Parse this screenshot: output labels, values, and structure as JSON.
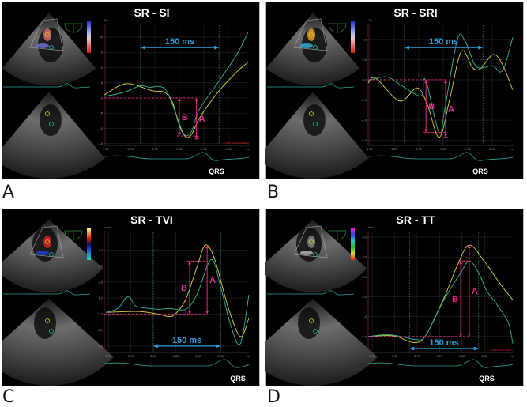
{
  "figure": {
    "panel_labels": [
      "A",
      "B",
      "C",
      "D"
    ]
  },
  "colors": {
    "yellow": "#d9d23c",
    "green": "#2bb79a",
    "magenta": "#e32a8c",
    "interval": "#2a9fe0",
    "ecg": "#27a895",
    "axis_red": "#8a2040",
    "drift": "#d41a1a"
  },
  "panels": [
    {
      "title": "SR - SI",
      "interval_label": "150 ms",
      "qrs_label": "QRS",
      "a_label": "A",
      "b_label": "B",
      "drift_label": "Drift compensation"
    },
    {
      "title": "SR - SRI",
      "interval_label": "150 ms",
      "qrs_label": "QRS",
      "a_label": "A",
      "b_label": "B"
    },
    {
      "title": "SR - TVI",
      "interval_label": "150 ms",
      "qrs_label": "QRS",
      "a_label": "A",
      "b_label": "B"
    },
    {
      "title": "SR - TT",
      "interval_label": "150 ms",
      "qrs_label": "QRS",
      "a_label": "A",
      "b_label": "B",
      "drift_label": "Drift compensation"
    }
  ],
  "chart_data": [
    {
      "type": "line",
      "title": "SR - SI",
      "y_unit": "%",
      "x_unit": "s",
      "xlim": [
        1.197,
        1.492
      ],
      "ylim": [
        -15.6,
        23.9
      ],
      "xticks": [
        1.2,
        1.25,
        1.3,
        1.35,
        1.4,
        1.45
      ],
      "xtick_labels": [
        "1.20",
        "1.25",
        "1.30",
        "1.35",
        "1.40",
        "1.45"
      ],
      "yticks": [
        20,
        15,
        10,
        5,
        0,
        -5,
        -10,
        -15
      ],
      "ytick_labels": [
        "20",
        "15",
        "10",
        "5",
        "0",
        "-5",
        "-10",
        "-15"
      ],
      "series": [
        {
          "name": "yellow",
          "points": [
            [
              1.197,
              1
            ],
            [
              1.242,
              4.7
            ],
            [
              1.294,
              2.4
            ],
            [
              1.318,
              2
            ],
            [
              1.335,
              -1
            ],
            [
              1.35,
              -9
            ],
            [
              1.363,
              -12.8
            ],
            [
              1.375,
              -12
            ],
            [
              1.39,
              -7
            ],
            [
              1.415,
              -1
            ],
            [
              1.44,
              4
            ],
            [
              1.47,
              9
            ],
            [
              1.49,
              11.7
            ]
          ]
        },
        {
          "name": "green",
          "points": [
            [
              1.197,
              0.5
            ],
            [
              1.24,
              2
            ],
            [
              1.27,
              4
            ],
            [
              1.29,
              3.5
            ],
            [
              1.31,
              3.8
            ],
            [
              1.325,
              2
            ],
            [
              1.345,
              -6
            ],
            [
              1.36,
              -12
            ],
            [
              1.375,
              -11
            ],
            [
              1.39,
              -4
            ],
            [
              1.42,
              3
            ],
            [
              1.45,
              10
            ],
            [
              1.47,
              15
            ],
            [
              1.49,
              21.5
            ]
          ]
        }
      ],
      "annotations": {
        "baseline": 0,
        "b": {
          "t": 1.35,
          "value": -12.5
        },
        "a": {
          "t": 1.385,
          "value": -13.5
        },
        "interval": {
          "start": 1.271,
          "end": 1.431,
          "value": 16.6
        }
      }
    },
    {
      "type": "line",
      "title": "SR - SRI",
      "y_unit": "1/s",
      "x_unit": "s",
      "xlim": [
        1.197,
        1.492
      ],
      "ylim": [
        -6.5,
        5.4
      ],
      "xticks": [
        1.2,
        1.25,
        1.3,
        1.35,
        1.4,
        1.45
      ],
      "xtick_labels": [
        "1.20",
        "1.25",
        "1.30",
        "1.35",
        "1.40",
        "1.45"
      ],
      "yticks": [
        4,
        2,
        0,
        -2,
        -4,
        -6
      ],
      "ytick_labels": [
        "4.0",
        "2.0",
        "0.0",
        "-2.0",
        "-4.0",
        "-6.0"
      ],
      "series": [
        {
          "name": "yellow",
          "points": [
            [
              1.197,
              -0.3
            ],
            [
              1.213,
              0.15
            ],
            [
              1.261,
              -2.1
            ],
            [
              1.297,
              -0.8
            ],
            [
              1.318,
              -2.5
            ],
            [
              1.342,
              -5.7
            ],
            [
              1.363,
              -2
            ],
            [
              1.387,
              2.8
            ],
            [
              1.41,
              1.2
            ],
            [
              1.426,
              1.1
            ],
            [
              1.452,
              2.5
            ],
            [
              1.471,
              1.5
            ],
            [
              1.492,
              -1
            ]
          ]
        },
        {
          "name": "green",
          "points": [
            [
              1.197,
              -0.1
            ],
            [
              1.234,
              0.3
            ],
            [
              1.266,
              -0.6
            ],
            [
              1.305,
              -1.6
            ],
            [
              1.31,
              0
            ],
            [
              1.318,
              -0.6
            ],
            [
              1.342,
              -5.3
            ],
            [
              1.353,
              -3
            ],
            [
              1.379,
              4
            ],
            [
              1.395,
              3.8
            ],
            [
              1.418,
              1.3
            ],
            [
              1.45,
              1.4
            ],
            [
              1.471,
              0.9
            ],
            [
              1.492,
              4.2
            ]
          ]
        }
      ],
      "annotations": {
        "baseline": 0,
        "b": {
          "t": 1.315,
          "value": -5.2
        },
        "a": {
          "t": 1.355,
          "value": -5.7
        },
        "interval": {
          "start": 1.271,
          "end": 1.431,
          "value": 3.2
        }
      }
    },
    {
      "type": "line",
      "title": "SR - TVI",
      "y_unit": "cm/s",
      "x_unit": "s",
      "xlim": [
        0.691,
        1.013
      ],
      "ylim": [
        -2.4,
        5.1
      ],
      "xticks": [
        0.7,
        0.75,
        0.8,
        0.85,
        0.9,
        0.95
      ],
      "xtick_labels": [
        "0.70",
        "0.75",
        "0.80",
        "0.85",
        "0.90",
        "0.95"
      ],
      "yticks": [
        4,
        3,
        2,
        1,
        0,
        -1,
        -2
      ],
      "ytick_labels": [
        "4.0",
        "3.0",
        "2.0",
        "1.0",
        "0.0",
        "-1.0",
        "-2.0"
      ],
      "series": [
        {
          "name": "yellow",
          "points": [
            [
              0.695,
              0.1
            ],
            [
              0.767,
              0.16
            ],
            [
              0.809,
              0
            ],
            [
              0.835,
              -0.16
            ],
            [
              0.849,
              0
            ],
            [
              0.872,
              0.9
            ],
            [
              0.897,
              2.9
            ],
            [
              0.916,
              4.3
            ],
            [
              0.937,
              3.4
            ],
            [
              0.967,
              0.4
            ],
            [
              0.994,
              -1.4
            ],
            [
              1.013,
              -0.25
            ]
          ]
        },
        {
          "name": "green",
          "points": [
            [
              0.695,
              0.1
            ],
            [
              0.721,
              0.35
            ],
            [
              0.739,
              1.0
            ],
            [
              0.749,
              1.0
            ],
            [
              0.761,
              0.5
            ],
            [
              0.791,
              0.35
            ],
            [
              0.814,
              0.3
            ],
            [
              0.837,
              0.35
            ],
            [
              0.872,
              0.3
            ],
            [
              0.897,
              1.2
            ],
            [
              0.929,
              3.4
            ],
            [
              0.95,
              1.7
            ],
            [
              0.973,
              -0.75
            ],
            [
              0.994,
              -1.85
            ],
            [
              1.013,
              1.2
            ]
          ]
        }
      ],
      "annotations": {
        "baseline": 0,
        "b": {
          "t": 0.881,
          "value": 3.3
        },
        "a": {
          "t": 0.92,
          "value": 4.3
        },
        "interval": {
          "start": 0.8,
          "end": 0.95,
          "value": -2.0
        }
      }
    },
    {
      "type": "line",
      "title": "SR - TT",
      "y_unit": "mm",
      "x_unit": "s",
      "xlim": [
        0.591,
        0.913
      ],
      "ylim": [
        -0.8,
        5.24
      ],
      "xticks": [
        0.6,
        0.65,
        0.7,
        0.75,
        0.8,
        0.85
      ],
      "xtick_labels": [
        "0.60",
        "0.65",
        "0.70",
        "0.75",
        "0.80",
        "0.85"
      ],
      "yticks": [
        5,
        4,
        3,
        2,
        1,
        0
      ],
      "ytick_labels": [
        "5.0",
        "4.0",
        "3.0",
        "2.0",
        "1.0",
        "0.0"
      ],
      "series": [
        {
          "name": "yellow",
          "points": [
            [
              0.591,
              0
            ],
            [
              0.631,
              0.05
            ],
            [
              0.655,
              0
            ],
            [
              0.693,
              -0.3
            ],
            [
              0.719,
              0.05
            ],
            [
              0.761,
              2.0
            ],
            [
              0.79,
              3.6
            ],
            [
              0.816,
              4.6
            ],
            [
              0.849,
              3.8
            ],
            [
              0.885,
              2.65
            ],
            [
              0.913,
              1.85
            ]
          ]
        },
        {
          "name": "green",
          "points": [
            [
              0.591,
              0
            ],
            [
              0.631,
              0.1
            ],
            [
              0.665,
              0
            ],
            [
              0.697,
              -0.15
            ],
            [
              0.719,
              0.05
            ],
            [
              0.761,
              1.9
            ],
            [
              0.797,
              3.2
            ],
            [
              0.816,
              3.8
            ],
            [
              0.837,
              3.2
            ],
            [
              0.855,
              2.3
            ],
            [
              0.878,
              1.6
            ],
            [
              0.903,
              0.7
            ],
            [
              0.913,
              -0.35
            ]
          ]
        }
      ],
      "annotations": {
        "baseline": 0,
        "b": {
          "t": 0.797,
          "value": 3.8
        },
        "a": {
          "t": 0.816,
          "value": 4.6
        },
        "interval": {
          "start": 0.683,
          "end": 0.837,
          "value": -0.6
        }
      }
    }
  ]
}
